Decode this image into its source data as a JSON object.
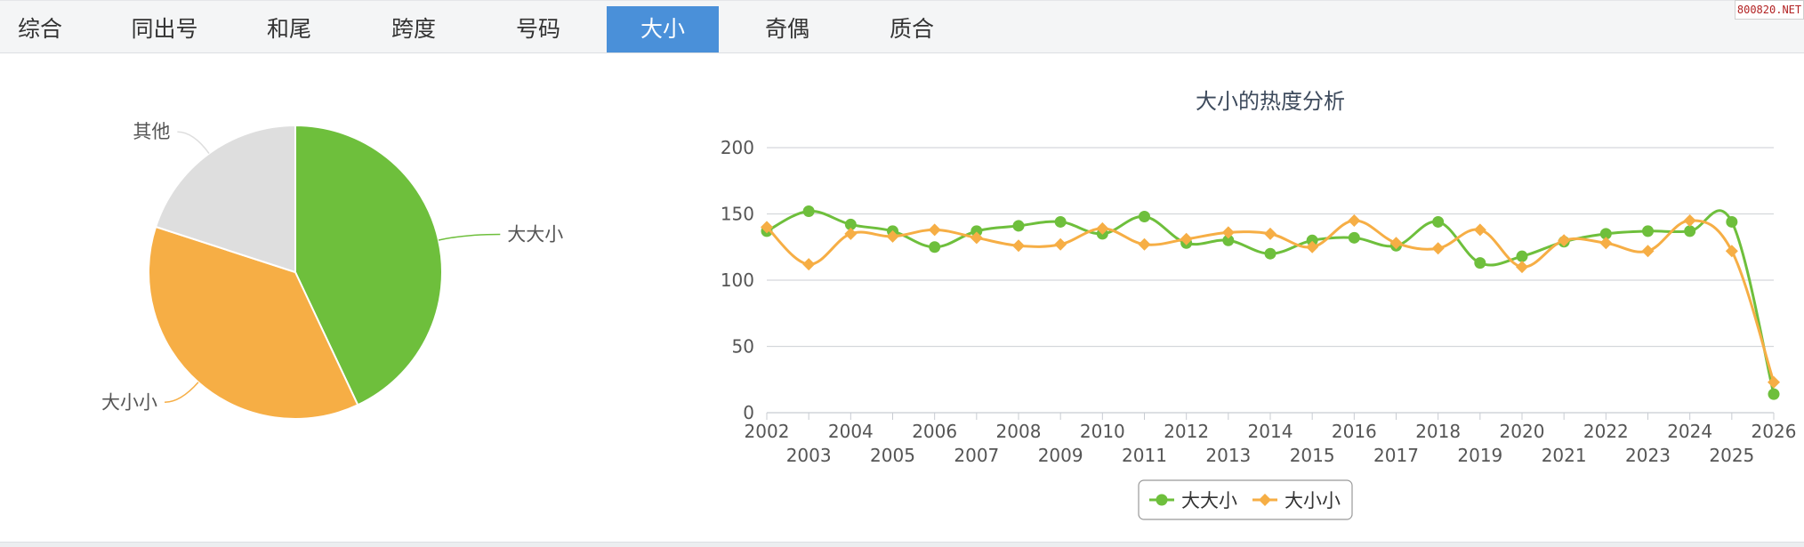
{
  "tabs": [
    {
      "label": "综合",
      "active": false
    },
    {
      "label": "同出号",
      "active": false
    },
    {
      "label": "和尾",
      "active": false
    },
    {
      "label": "跨度",
      "active": false
    },
    {
      "label": "号码",
      "active": false
    },
    {
      "label": "大小",
      "active": true
    },
    {
      "label": "奇偶",
      "active": false
    },
    {
      "label": "质合",
      "active": false
    }
  ],
  "watermark": "800820.NET",
  "colors": {
    "green": "#6ebf3c",
    "orange": "#f6ae45",
    "grey": "#dedede",
    "tab_active": "#4a90d9"
  },
  "chart_data": [
    {
      "type": "pie",
      "title": "",
      "slices": [
        {
          "label": "大大小",
          "value": 43,
          "color": "#6ebf3c"
        },
        {
          "label": "大小小",
          "value": 37,
          "color": "#f6ae45"
        },
        {
          "label": "其他",
          "value": 20,
          "color": "#dedede"
        }
      ]
    },
    {
      "type": "line",
      "title": "大小的热度分析",
      "xlabel": "",
      "ylabel": "",
      "ylim": [
        0,
        200
      ],
      "yticks": [
        0,
        50,
        100,
        150,
        200
      ],
      "grid": true,
      "legend": "bottom-center",
      "categories": [
        "2002",
        "2003",
        "2004",
        "2005",
        "2006",
        "2007",
        "2008",
        "2009",
        "2010",
        "2011",
        "2012",
        "2013",
        "2014",
        "2015",
        "2016",
        "2017",
        "2018",
        "2019",
        "2020",
        "2021",
        "2022",
        "2023",
        "2024",
        "2025",
        "2026"
      ],
      "series": [
        {
          "name": "大大小",
          "color": "#6ebf3c",
          "marker": "circle",
          "values": [
            137,
            152,
            142,
            137,
            125,
            137,
            141,
            144,
            135,
            148,
            128,
            130,
            120,
            130,
            132,
            126,
            144,
            113,
            118,
            129,
            135,
            137,
            137,
            144,
            14
          ]
        },
        {
          "name": "大小小",
          "color": "#f6ae45",
          "marker": "diamond",
          "values": [
            140,
            112,
            135,
            133,
            138,
            132,
            126,
            127,
            139,
            127,
            131,
            136,
            135,
            125,
            145,
            128,
            124,
            138,
            110,
            130,
            128,
            122,
            145,
            122,
            23
          ]
        }
      ]
    }
  ]
}
